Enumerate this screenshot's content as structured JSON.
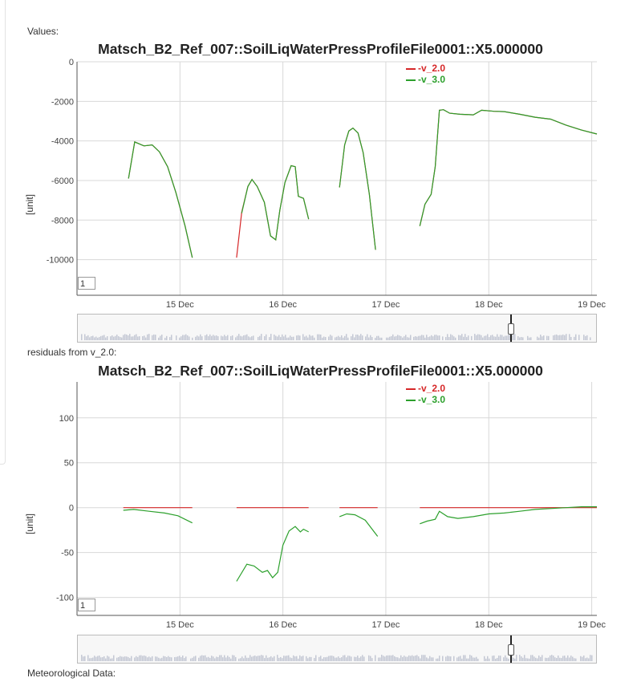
{
  "sections": {
    "values_label": "Values:",
    "residuals_label": "residuals from v_2.0:",
    "meteo_label": "Meteorological Data:"
  },
  "charts": {
    "values": {
      "title": "Matsch_B2_Ref_007::SoilLiqWaterPressProfileFile0001::X5.000000",
      "ylabel": "[unit]",
      "label_box": "1",
      "legend": [
        {
          "name": "-v_2.0",
          "color": "#d62728"
        },
        {
          "name": "-v_3.0",
          "color": "#2ca02c"
        }
      ]
    },
    "residuals": {
      "title": "Matsch_B2_Ref_007::SoilLiqWaterPressProfileFile0001::X5.000000",
      "ylabel": "[unit]",
      "label_box": "1",
      "legend": [
        {
          "name": "-v_2.0",
          "color": "#d62728"
        },
        {
          "name": "-v_3.0",
          "color": "#2ca02c"
        }
      ]
    }
  },
  "chart_data": [
    {
      "type": "line",
      "title": "Matsch_B2_Ref_007::SoilLiqWaterPressProfileFile0001::X5.000000",
      "xlabel": "",
      "ylabel": "[unit]",
      "x_unit": "days (December)",
      "xlim": [
        14.0,
        19.05
      ],
      "ylim": [
        -11800,
        0
      ],
      "yticks": [
        0,
        -2000,
        -4000,
        -6000,
        -8000,
        -10000
      ],
      "xticks": [
        {
          "x": 15,
          "label": "15 Dec"
        },
        {
          "x": 16,
          "label": "16 Dec"
        },
        {
          "x": 17,
          "label": "17 Dec"
        },
        {
          "x": 18,
          "label": "18 Dec"
        },
        {
          "x": 19,
          "label": "19 Dec"
        }
      ],
      "grid": true,
      "legend_position": "top-right",
      "series": [
        {
          "name": "-v_2.0",
          "color": "#d62728",
          "segments": [
            [
              [
                14.5,
                -5900
              ],
              [
                14.56,
                -4050
              ],
              [
                14.65,
                -4250
              ],
              [
                14.73,
                -4200
              ],
              [
                14.8,
                -4550
              ],
              [
                14.88,
                -5300
              ],
              [
                14.96,
                -6600
              ],
              [
                15.05,
                -8300
              ],
              [
                15.12,
                -9900
              ]
            ],
            [
              [
                15.55,
                -9900
              ],
              [
                15.6,
                -7600
              ],
              [
                15.66,
                -6300
              ],
              [
                15.7,
                -5950
              ],
              [
                15.75,
                -6300
              ],
              [
                15.82,
                -7100
              ],
              [
                15.88,
                -8800
              ],
              [
                15.93,
                -9000
              ],
              [
                15.97,
                -7500
              ],
              [
                16.02,
                -6100
              ],
              [
                16.08,
                -5250
              ],
              [
                16.12,
                -5300
              ],
              [
                16.15,
                -6800
              ],
              [
                16.2,
                -6900
              ],
              [
                16.25,
                -7950
              ]
            ],
            [
              [
                16.55,
                -6350
              ],
              [
                16.6,
                -4200
              ],
              [
                16.64,
                -3500
              ],
              [
                16.68,
                -3350
              ],
              [
                16.73,
                -3600
              ],
              [
                16.78,
                -4600
              ],
              [
                16.84,
                -6700
              ],
              [
                16.9,
                -9500
              ]
            ],
            [
              [
                17.33,
                -8300
              ],
              [
                17.38,
                -7200
              ],
              [
                17.44,
                -6700
              ],
              [
                17.48,
                -5300
              ],
              [
                17.52,
                -2450
              ],
              [
                17.56,
                -2420
              ],
              [
                17.62,
                -2600
              ],
              [
                17.72,
                -2650
              ],
              [
                17.85,
                -2680
              ],
              [
                17.93,
                -2450
              ],
              [
                18.05,
                -2500
              ],
              [
                18.15,
                -2520
              ],
              [
                18.3,
                -2650
              ],
              [
                18.45,
                -2800
              ],
              [
                18.6,
                -2900
              ],
              [
                18.75,
                -3200
              ],
              [
                18.9,
                -3450
              ],
              [
                19.05,
                -3650
              ]
            ]
          ]
        },
        {
          "name": "-v_3.0",
          "color": "#2ca02c",
          "segments": [
            [
              [
                14.5,
                -5900
              ],
              [
                14.56,
                -4050
              ],
              [
                14.65,
                -4250
              ],
              [
                14.73,
                -4200
              ],
              [
                14.8,
                -4550
              ],
              [
                14.88,
                -5300
              ],
              [
                14.96,
                -6600
              ],
              [
                15.05,
                -8300
              ],
              [
                15.12,
                -9900
              ]
            ],
            [
              [
                15.6,
                -7650
              ],
              [
                15.66,
                -6300
              ],
              [
                15.7,
                -5950
              ],
              [
                15.75,
                -6300
              ],
              [
                15.82,
                -7100
              ],
              [
                15.88,
                -8800
              ],
              [
                15.93,
                -9000
              ],
              [
                15.97,
                -7500
              ],
              [
                16.02,
                -6100
              ],
              [
                16.08,
                -5250
              ],
              [
                16.12,
                -5300
              ],
              [
                16.15,
                -6800
              ],
              [
                16.2,
                -6900
              ],
              [
                16.25,
                -7950
              ]
            ],
            [
              [
                16.55,
                -6350
              ],
              [
                16.6,
                -4200
              ],
              [
                16.64,
                -3500
              ],
              [
                16.68,
                -3350
              ],
              [
                16.73,
                -3600
              ],
              [
                16.78,
                -4600
              ],
              [
                16.84,
                -6700
              ],
              [
                16.9,
                -9500
              ]
            ],
            [
              [
                17.33,
                -8300
              ],
              [
                17.38,
                -7200
              ],
              [
                17.44,
                -6700
              ],
              [
                17.48,
                -5300
              ],
              [
                17.52,
                -2450
              ],
              [
                17.56,
                -2420
              ],
              [
                17.62,
                -2600
              ],
              [
                17.72,
                -2650
              ],
              [
                17.85,
                -2680
              ],
              [
                17.93,
                -2450
              ],
              [
                18.05,
                -2500
              ],
              [
                18.15,
                -2520
              ],
              [
                18.3,
                -2650
              ],
              [
                18.45,
                -2800
              ],
              [
                18.6,
                -2900
              ],
              [
                18.75,
                -3200
              ],
              [
                18.9,
                -3450
              ],
              [
                19.05,
                -3650
              ]
            ]
          ]
        }
      ]
    },
    {
      "type": "line",
      "title": "Matsch_B2_Ref_007::SoilLiqWaterPressProfileFile0001::X5.000000",
      "xlabel": "",
      "ylabel": "[unit]",
      "x_unit": "days (December)",
      "xlim": [
        14.0,
        19.05
      ],
      "ylim": [
        -120,
        140
      ],
      "yticks": [
        100,
        50,
        0,
        -50,
        -100
      ],
      "xticks": [
        {
          "x": 15,
          "label": "15 Dec"
        },
        {
          "x": 16,
          "label": "16 Dec"
        },
        {
          "x": 17,
          "label": "17 Dec"
        },
        {
          "x": 18,
          "label": "18 Dec"
        },
        {
          "x": 19,
          "label": "19 Dec"
        }
      ],
      "grid": true,
      "legend_position": "top-right",
      "series": [
        {
          "name": "-v_2.0",
          "color": "#d62728",
          "segments": [
            [
              [
                14.45,
                0
              ],
              [
                15.12,
                0
              ]
            ],
            [
              [
                15.55,
                0
              ],
              [
                16.25,
                0
              ]
            ],
            [
              [
                16.55,
                0
              ],
              [
                16.92,
                0
              ]
            ],
            [
              [
                17.33,
                0
              ],
              [
                19.05,
                0
              ]
            ]
          ]
        },
        {
          "name": "-v_3.0",
          "color": "#2ca02c",
          "segments": [
            [
              [
                14.45,
                -3
              ],
              [
                14.55,
                -2
              ],
              [
                14.7,
                -4
              ],
              [
                14.85,
                -6
              ],
              [
                14.98,
                -9
              ],
              [
                15.12,
                -17
              ]
            ],
            [
              [
                15.55,
                -82
              ],
              [
                15.65,
                -63
              ],
              [
                15.72,
                -65
              ],
              [
                15.8,
                -72
              ],
              [
                15.85,
                -70
              ],
              [
                15.9,
                -78
              ],
              [
                15.95,
                -72
              ],
              [
                16.0,
                -42
              ],
              [
                16.06,
                -26
              ],
              [
                16.12,
                -21
              ],
              [
                16.17,
                -27
              ],
              [
                16.2,
                -24
              ],
              [
                16.25,
                -27
              ]
            ],
            [
              [
                16.55,
                -10
              ],
              [
                16.62,
                -7
              ],
              [
                16.7,
                -8
              ],
              [
                16.8,
                -14
              ],
              [
                16.92,
                -32
              ]
            ],
            [
              [
                17.33,
                -18
              ],
              [
                17.4,
                -15
              ],
              [
                17.48,
                -13
              ],
              [
                17.52,
                -4
              ],
              [
                17.6,
                -10
              ],
              [
                17.7,
                -12
              ],
              [
                17.85,
                -10
              ],
              [
                18.0,
                -7
              ],
              [
                18.15,
                -6
              ],
              [
                18.3,
                -4
              ],
              [
                18.45,
                -2
              ],
              [
                18.6,
                -1
              ],
              [
                18.75,
                0
              ],
              [
                18.9,
                1
              ],
              [
                19.05,
                1
              ]
            ]
          ]
        }
      ]
    }
  ]
}
